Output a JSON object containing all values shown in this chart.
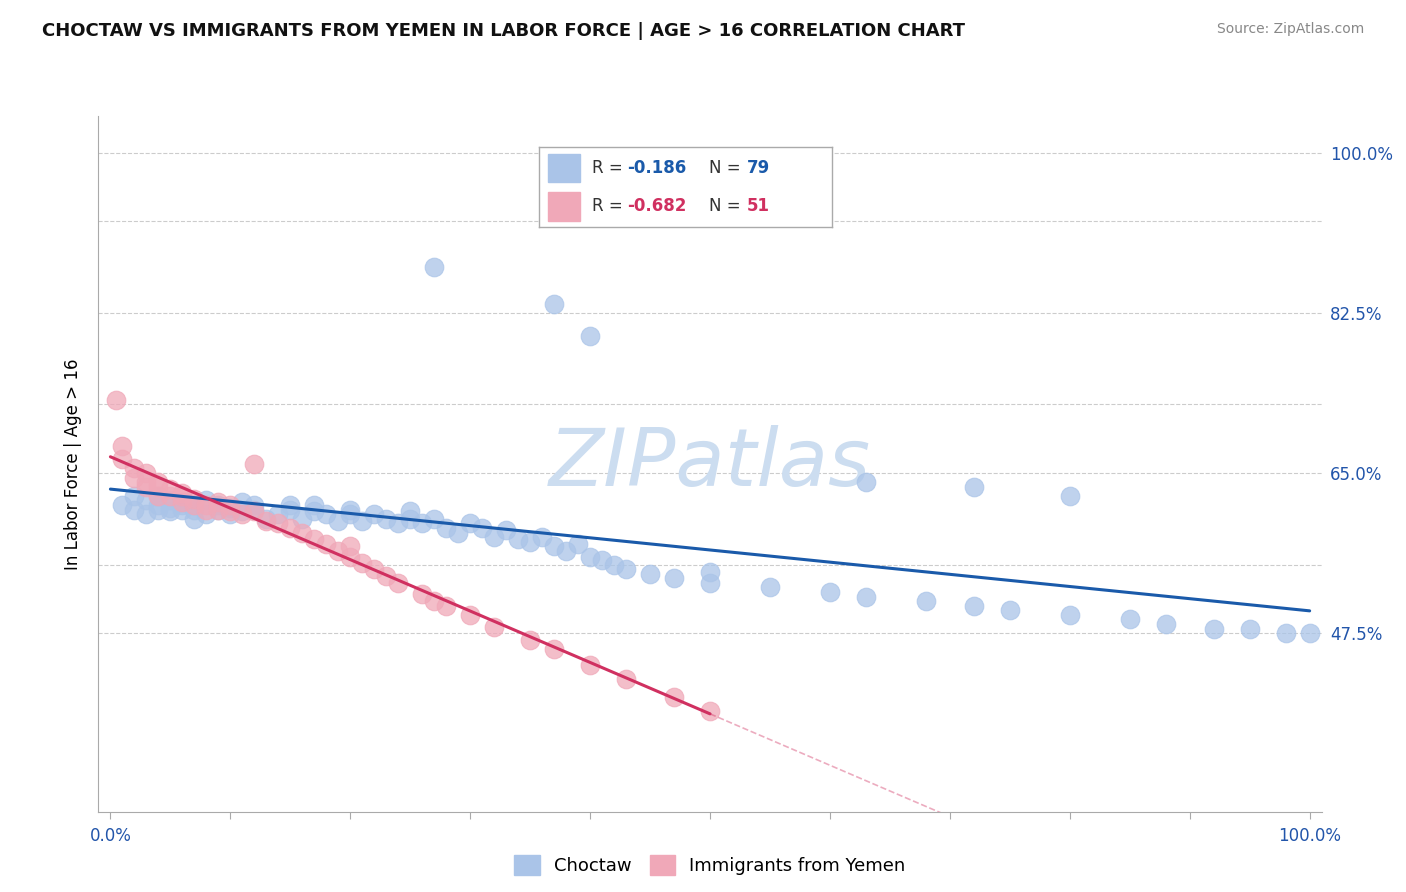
{
  "title": "CHOCTAW VS IMMIGRANTS FROM YEMEN IN LABOR FORCE | AGE > 16 CORRELATION CHART",
  "source": "Source: ZipAtlas.com",
  "ylabel": "In Labor Force | Age > 16",
  "choctaw_color": "#aac4e8",
  "choctaw_edge": "#aac4e8",
  "yemen_color": "#f0a8b8",
  "yemen_edge": "#f0a8b8",
  "line_choctaw_color": "#1a5aaa",
  "line_yemen_color": "#d03060",
  "watermark_color": "#ccddf0",
  "grid_color": "#cccccc",
  "tick_color": "#2255aa",
  "title_color": "#111111",
  "source_color": "#888888",
  "choctaw_x": [
    0.01,
    0.02,
    0.02,
    0.03,
    0.03,
    0.04,
    0.04,
    0.04,
    0.05,
    0.05,
    0.05,
    0.06,
    0.06,
    0.06,
    0.07,
    0.07,
    0.07,
    0.08,
    0.08,
    0.09,
    0.09,
    0.1,
    0.1,
    0.11,
    0.11,
    0.12,
    0.12,
    0.13,
    0.14,
    0.15,
    0.15,
    0.16,
    0.17,
    0.17,
    0.18,
    0.19,
    0.2,
    0.2,
    0.21,
    0.22,
    0.23,
    0.24,
    0.25,
    0.25,
    0.26,
    0.27,
    0.28,
    0.29,
    0.3,
    0.31,
    0.32,
    0.33,
    0.34,
    0.35,
    0.36,
    0.37,
    0.38,
    0.39,
    0.4,
    0.41,
    0.42,
    0.43,
    0.45,
    0.47,
    0.5,
    0.5,
    0.55,
    0.6,
    0.63,
    0.68,
    0.72,
    0.75,
    0.8,
    0.85,
    0.88,
    0.92,
    0.95,
    0.98,
    1.0
  ],
  "choctaw_y": [
    0.615,
    0.61,
    0.625,
    0.605,
    0.62,
    0.61,
    0.615,
    0.625,
    0.608,
    0.612,
    0.62,
    0.615,
    0.61,
    0.618,
    0.6,
    0.615,
    0.61,
    0.605,
    0.62,
    0.61,
    0.615,
    0.605,
    0.612,
    0.608,
    0.618,
    0.61,
    0.615,
    0.6,
    0.605,
    0.61,
    0.615,
    0.6,
    0.608,
    0.615,
    0.605,
    0.598,
    0.605,
    0.61,
    0.598,
    0.605,
    0.6,
    0.595,
    0.6,
    0.608,
    0.595,
    0.6,
    0.59,
    0.585,
    0.595,
    0.59,
    0.58,
    0.588,
    0.578,
    0.575,
    0.58,
    0.57,
    0.565,
    0.572,
    0.558,
    0.555,
    0.55,
    0.545,
    0.54,
    0.535,
    0.53,
    0.542,
    0.525,
    0.52,
    0.515,
    0.51,
    0.505,
    0.5,
    0.495,
    0.49,
    0.485,
    0.48,
    0.48,
    0.475,
    0.475
  ],
  "choctaw_outlier_x": [
    0.27,
    0.37,
    0.4,
    0.63,
    0.72,
    0.8
  ],
  "choctaw_outlier_y": [
    0.875,
    0.835,
    0.8,
    0.64,
    0.635,
    0.625
  ],
  "yemen_x": [
    0.005,
    0.01,
    0.01,
    0.02,
    0.02,
    0.03,
    0.03,
    0.03,
    0.04,
    0.04,
    0.04,
    0.05,
    0.05,
    0.06,
    0.06,
    0.06,
    0.07,
    0.07,
    0.08,
    0.08,
    0.09,
    0.09,
    0.1,
    0.1,
    0.11,
    0.12,
    0.13,
    0.14,
    0.15,
    0.16,
    0.17,
    0.18,
    0.19,
    0.2,
    0.21,
    0.22,
    0.23,
    0.24,
    0.26,
    0.27,
    0.28,
    0.3,
    0.32,
    0.35,
    0.37,
    0.4,
    0.43,
    0.47,
    0.5,
    0.12,
    0.2
  ],
  "yemen_y": [
    0.73,
    0.68,
    0.665,
    0.655,
    0.645,
    0.64,
    0.65,
    0.635,
    0.635,
    0.625,
    0.64,
    0.625,
    0.632,
    0.625,
    0.618,
    0.628,
    0.615,
    0.622,
    0.615,
    0.61,
    0.61,
    0.618,
    0.608,
    0.615,
    0.605,
    0.608,
    0.598,
    0.595,
    0.59,
    0.585,
    0.578,
    0.572,
    0.565,
    0.558,
    0.552,
    0.545,
    0.538,
    0.53,
    0.518,
    0.51,
    0.505,
    0.495,
    0.482,
    0.468,
    0.458,
    0.44,
    0.425,
    0.405,
    0.39,
    0.66,
    0.57
  ],
  "xlim": [
    -0.01,
    1.01
  ],
  "ylim": [
    0.28,
    1.04
  ],
  "y_ticks": [
    0.475,
    0.55,
    0.65,
    0.725,
    0.825,
    0.925,
    1.0
  ],
  "y_labels": [
    "47.5%",
    "",
    "65.0%",
    "",
    "82.5%",
    "",
    "100.0%"
  ],
  "x_ticks": [
    0.0,
    0.1,
    0.2,
    0.3,
    0.4,
    0.5,
    0.6,
    0.7,
    0.8,
    0.9,
    1.0
  ],
  "x_labels": [
    "0.0%",
    "",
    "",
    "",
    "",
    "",
    "",
    "",
    "",
    "",
    "100.0%"
  ]
}
